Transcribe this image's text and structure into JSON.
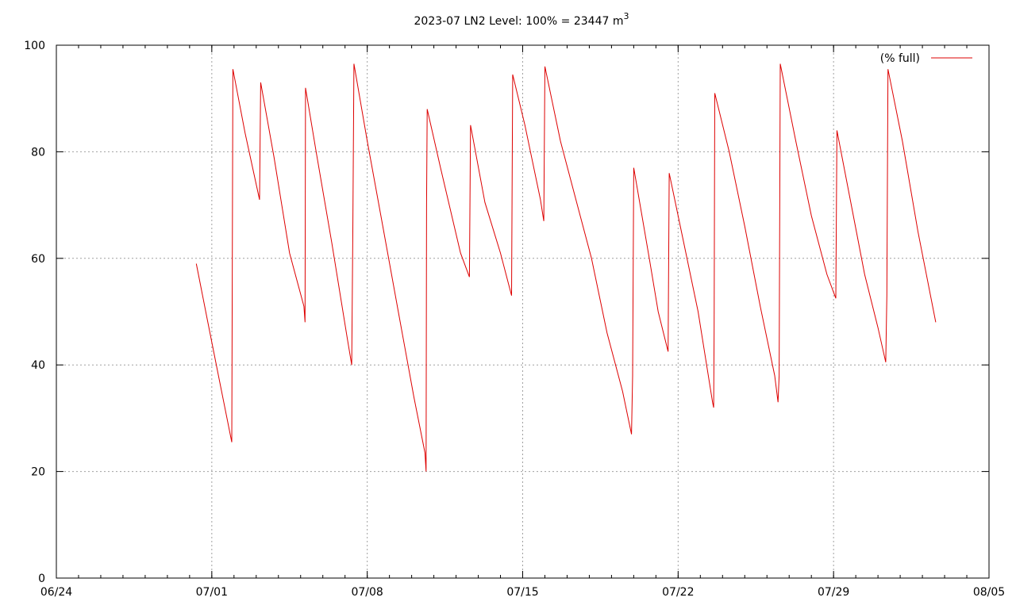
{
  "chart_data": {
    "type": "line",
    "title_main": "2023-07 LN2 Level: 100% = 23447 m",
    "title_sup": "3",
    "xlabel": "",
    "ylabel": "",
    "x_range_days": [
      0,
      42
    ],
    "x_ticks": [
      {
        "day": 0,
        "label": "06/24"
      },
      {
        "day": 7,
        "label": "07/01"
      },
      {
        "day": 14,
        "label": "07/08"
      },
      {
        "day": 21,
        "label": "07/15"
      },
      {
        "day": 28,
        "label": "07/22"
      },
      {
        "day": 35,
        "label": "07/29"
      },
      {
        "day": 42,
        "label": "08/05"
      }
    ],
    "ylim": [
      0,
      100
    ],
    "y_ticks": [
      0,
      20,
      40,
      60,
      80,
      100
    ],
    "grid": true,
    "legend_position": "top-right",
    "series": [
      {
        "name": "(% full)",
        "color": "#dd0000",
        "points": [
          [
            6.3,
            59.0
          ],
          [
            6.8,
            48.5
          ],
          [
            7.3,
            38.0
          ],
          [
            7.9,
            25.5
          ],
          [
            7.95,
            95.5
          ],
          [
            8.5,
            83.5
          ],
          [
            9.15,
            71.0
          ],
          [
            9.2,
            93.0
          ],
          [
            9.8,
            79.0
          ],
          [
            10.5,
            61.0
          ],
          [
            11.15,
            51.0
          ],
          [
            11.2,
            48.0
          ],
          [
            11.22,
            92.0
          ],
          [
            11.7,
            80.0
          ],
          [
            12.4,
            63.0
          ],
          [
            13.1,
            45.0
          ],
          [
            13.3,
            40.0
          ],
          [
            13.35,
            65.0
          ],
          [
            13.4,
            96.5
          ],
          [
            14.0,
            82.0
          ],
          [
            14.7,
            66.0
          ],
          [
            15.4,
            50.0
          ],
          [
            16.1,
            34.0
          ],
          [
            16.6,
            23.5
          ],
          [
            16.65,
            20.0
          ],
          [
            16.67,
            70.0
          ],
          [
            16.7,
            88.0
          ],
          [
            17.3,
            77.0
          ],
          [
            18.2,
            61.0
          ],
          [
            18.6,
            56.5
          ],
          [
            18.65,
            85.0
          ],
          [
            19.3,
            70.5
          ],
          [
            20.0,
            61.0
          ],
          [
            20.5,
            53.0
          ],
          [
            20.55,
            94.5
          ],
          [
            21.1,
            85.0
          ],
          [
            21.8,
            71.0
          ],
          [
            21.95,
            67.0
          ],
          [
            22.0,
            96.0
          ],
          [
            22.7,
            82.0
          ],
          [
            23.4,
            71.0
          ],
          [
            24.1,
            60.0
          ],
          [
            24.8,
            46.0
          ],
          [
            25.5,
            35.0
          ],
          [
            25.9,
            27.0
          ],
          [
            25.95,
            38.0
          ],
          [
            26.0,
            77.0
          ],
          [
            26.7,
            60.0
          ],
          [
            27.1,
            50.0
          ],
          [
            27.55,
            42.5
          ],
          [
            27.6,
            76.0
          ],
          [
            28.2,
            64.0
          ],
          [
            28.9,
            50.0
          ],
          [
            29.55,
            33.0
          ],
          [
            29.6,
            32.0
          ],
          [
            29.62,
            47.0
          ],
          [
            29.65,
            91.0
          ],
          [
            30.3,
            80.0
          ],
          [
            31.0,
            66.0
          ],
          [
            31.7,
            51.0
          ],
          [
            32.35,
            38.0
          ],
          [
            32.5,
            33.0
          ],
          [
            32.55,
            38.0
          ],
          [
            32.6,
            96.5
          ],
          [
            33.3,
            82.0
          ],
          [
            34.0,
            68.0
          ],
          [
            34.7,
            57.0
          ],
          [
            35.1,
            52.5
          ],
          [
            35.15,
            84.0
          ],
          [
            35.8,
            70.0
          ],
          [
            36.4,
            57.0
          ],
          [
            37.0,
            47.0
          ],
          [
            37.35,
            40.5
          ],
          [
            37.4,
            53.0
          ],
          [
            37.45,
            95.5
          ],
          [
            38.1,
            82.0
          ],
          [
            38.8,
            65.0
          ],
          [
            39.6,
            48.0
          ]
        ]
      }
    ]
  }
}
